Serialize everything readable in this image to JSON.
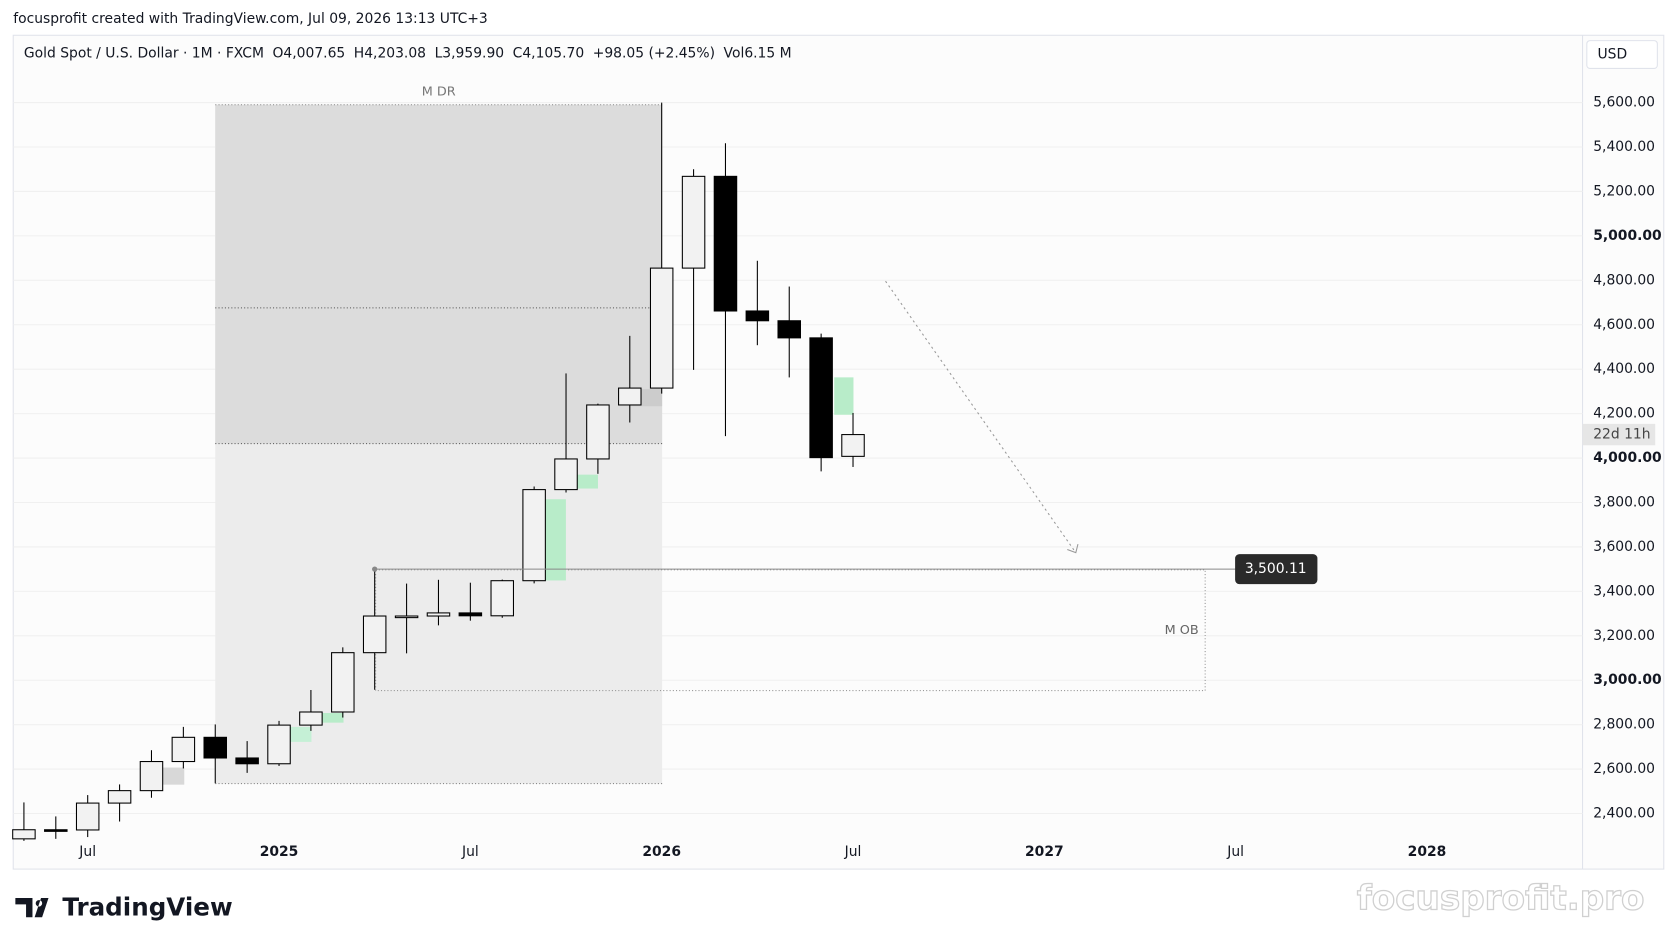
{
  "chart_data": {
    "type": "candlestick",
    "credit": "focusprofit created with TradingView.com, Jul 09, 2026 13:13 UTC+3",
    "symbol": "Gold Spot / U.S. Dollar · 1M · FXCM",
    "legend": [
      {
        "key": "O",
        "text": "4,007.65"
      },
      {
        "key": "H",
        "text": "4,203.08"
      },
      {
        "key": "L",
        "text": "3,959.90"
      },
      {
        "key": "C",
        "text": "4,105.70"
      },
      {
        "key": "",
        "text": "+98.05 (+2.45%)"
      },
      {
        "key": "Vol",
        "text": "6.15 M"
      }
    ],
    "currency": "USD",
    "categories": [
      null,
      null,
      "Jul",
      null,
      null,
      null,
      null,
      null,
      "2025",
      null,
      null,
      null,
      null,
      null,
      "Jul",
      null,
      null,
      null,
      null,
      null,
      "2026",
      null,
      null,
      null,
      null,
      null,
      "Jul",
      null,
      null,
      null,
      null,
      null,
      "2027",
      null,
      null,
      null,
      null,
      null,
      "Jul",
      null,
      null,
      null,
      null,
      null,
      "2028",
      null,
      null,
      null,
      null
    ],
    "open": [
      2286,
      2327,
      2326,
      2447,
      2503,
      2634,
      2743,
      2650,
      2624,
      2798,
      2857,
      3124,
      3289,
      3289,
      3303,
      3290,
      3448,
      3858,
      3996,
      4239,
      4315,
      4855,
      5268,
      4662,
      4618,
      4541,
      4007.65,
      null,
      null,
      null,
      null,
      null,
      null,
      null,
      null,
      null,
      null,
      null,
      null,
      null,
      null,
      null,
      null,
      null,
      null,
      null,
      null,
      null,
      null
    ],
    "high": [
      2450,
      2387,
      2483,
      2531,
      2685,
      2790,
      2801,
      2726,
      2817,
      2956,
      3148,
      3500,
      3435,
      3452,
      3439,
      3453,
      3872,
      4381,
      4245,
      4550,
      5600,
      5300,
      5417,
      4888,
      4772,
      4560,
      4203.08,
      null,
      null,
      null,
      null,
      null,
      null,
      null,
      null,
      null,
      null,
      null,
      null,
      null,
      null,
      null,
      null,
      null,
      null,
      null,
      null,
      null,
      null
    ],
    "low": [
      2277,
      2286,
      2294,
      2364,
      2471,
      2603,
      2536,
      2583,
      2614,
      2772,
      2832,
      2957,
      3121,
      3247,
      3268,
      3281,
      3436,
      3845,
      3929,
      4160,
      4290,
      4397,
      4099,
      4508,
      4363,
      3940,
      3959.9,
      null,
      null,
      null,
      null,
      null,
      null,
      null,
      null,
      null,
      null,
      null,
      null,
      null,
      null,
      null,
      null,
      null,
      null,
      null,
      null,
      null,
      null
    ],
    "close": [
      2327,
      2326,
      2447,
      2503,
      2634,
      2743,
      2650,
      2624,
      2798,
      2857,
      3124,
      3289,
      3289,
      3303,
      3290,
      3448,
      3858,
      3996,
      4239,
      4315,
      4855,
      5268,
      4662,
      4618,
      4541,
      4002,
      4105.7,
      null,
      null,
      null,
      null,
      null,
      null,
      null,
      null,
      null,
      null,
      null,
      null,
      null,
      null,
      null,
      null,
      null,
      null,
      null,
      null,
      null,
      null
    ],
    "up_color": "#f2f2f2",
    "down_color": "#000000",
    "ylim": [
      2299,
      5903
    ],
    "yticks": [
      {
        "value": 2400,
        "label": "2,400.00"
      },
      {
        "value": 2600,
        "label": "2,600.00"
      },
      {
        "value": 2800,
        "label": "2,800.00"
      },
      {
        "value": 3000,
        "label": "3,000.00"
      },
      {
        "value": 3200,
        "label": "3,200.00"
      },
      {
        "value": 3400,
        "label": "3,400.00"
      },
      {
        "value": 3600,
        "label": "3,600.00"
      },
      {
        "value": 3800,
        "label": "3,800.00"
      },
      {
        "value": 4000,
        "label": "4,000.00"
      },
      {
        "value": 4200,
        "label": "4,200.00"
      },
      {
        "value": 4400,
        "label": "4,400.00"
      },
      {
        "value": 4600,
        "label": "4,600.00"
      },
      {
        "value": 4800,
        "label": "4,800.00"
      },
      {
        "value": 5000,
        "label": "5,000.00"
      },
      {
        "value": 5200,
        "label": "5,200.00"
      },
      {
        "value": 5400,
        "label": "5,400.00"
      },
      {
        "value": 5600,
        "label": "5,600.00"
      }
    ],
    "grid": true,
    "annotations": [
      "M DR",
      "M OB"
    ],
    "price_label": {
      "value": 3500.11,
      "label": "3,500.11"
    },
    "countdown": "22d 11h",
    "logo": "TradingView",
    "watermark": "focusprofit.pro"
  }
}
